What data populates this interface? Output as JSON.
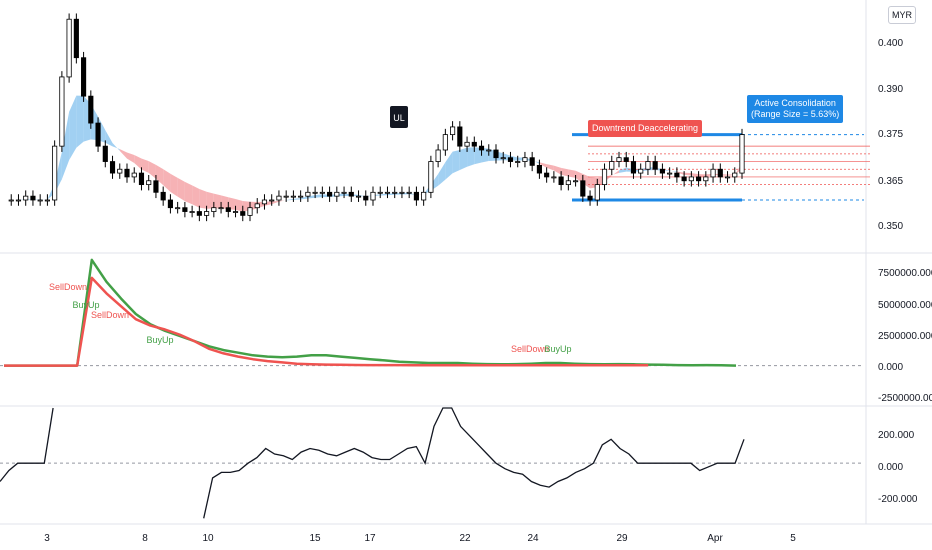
{
  "currency": "MYR",
  "colors": {
    "bull": "#ffffff",
    "bear": "#000000",
    "band_up": "#90c8f0",
    "band_down": "#f5a5a8",
    "green": "#43a047",
    "red": "#ef5350",
    "blue": "#1e88e5",
    "osc": "#131722"
  },
  "annotations": {
    "ul": "UL",
    "downtrend": "Downtrend Deaccelerating",
    "consolidation_title": "Active Consolidation",
    "consolidation_range": "(Range Size = 5.63%)"
  },
  "chart_data": [
    {
      "type": "candlestick",
      "x_ticks": [
        "3",
        "8",
        "10",
        "15",
        "17",
        "22",
        "24",
        "29",
        "Apr",
        "5"
      ],
      "y_ticks": [
        "0.400",
        "0.390",
        "0.375",
        "0.365",
        "0.350"
      ],
      "ylim": [
        0.345,
        0.41
      ],
      "closes": [
        0.358,
        0.358,
        0.358,
        0.359,
        0.358,
        0.358,
        0.358,
        0.372,
        0.39,
        0.405,
        0.395,
        0.385,
        0.378,
        0.372,
        0.368,
        0.365,
        0.366,
        0.364,
        0.365,
        0.362,
        0.363,
        0.36,
        0.358,
        0.356,
        0.356,
        0.355,
        0.355,
        0.354,
        0.355,
        0.356,
        0.356,
        0.355,
        0.355,
        0.354,
        0.356,
        0.357,
        0.358,
        0.358,
        0.359,
        0.359,
        0.359,
        0.359,
        0.36,
        0.36,
        0.36,
        0.359,
        0.36,
        0.36,
        0.359,
        0.359,
        0.358,
        0.36,
        0.36,
        0.36,
        0.36,
        0.36,
        0.36,
        0.358,
        0.36,
        0.368,
        0.371,
        0.375,
        0.377,
        0.372,
        0.373,
        0.372,
        0.371,
        0.371,
        0.369,
        0.369,
        0.368,
        0.368,
        0.369,
        0.367,
        0.365,
        0.364,
        0.364,
        0.362,
        0.363,
        0.363,
        0.359,
        0.358,
        0.362,
        0.366,
        0.368,
        0.369,
        0.368,
        0.365,
        0.366,
        0.368,
        0.366,
        0.365,
        0.365,
        0.364,
        0.363,
        0.364,
        0.363,
        0.364,
        0.366,
        0.364,
        0.364,
        0.365,
        0.375
      ],
      "resistance": 0.375,
      "support": 0.358,
      "annotations": [
        "UL",
        "Downtrend Deaccelerating",
        "Active Consolidation",
        "(Range Size = 5.63%)"
      ]
    },
    {
      "type": "line",
      "y_ticks": [
        "7500000.000",
        "5000000.000",
        "2500000.000",
        "0.000",
        "-2500000.000"
      ],
      "ylim": [
        -2900000,
        8500000
      ],
      "series": [
        {
          "color": "green",
          "values": [
            0,
            0,
            0,
            0,
            0,
            0,
            8200000,
            6500000,
            5200000,
            4000000,
            3200000,
            2700000,
            2300000,
            1900000,
            1500000,
            1200000,
            1000000,
            800000,
            700000,
            650000,
            700000,
            800000,
            800000,
            700000,
            600000,
            500000,
            400000,
            300000,
            250000,
            200000,
            200000,
            200000,
            150000,
            120000,
            100000,
            120000,
            150000,
            200000,
            200000,
            150000,
            120000,
            100000,
            120000,
            100000,
            80000,
            60000,
            40000,
            30000,
            40000,
            30000,
            0
          ]
        },
        {
          "color": "red",
          "values": [
            0,
            0,
            0,
            0,
            0,
            0,
            6800000,
            5600000,
            4600000,
            3600000,
            3100000,
            2800000,
            2400000,
            1900000,
            1300000,
            950000,
            700000,
            500000,
            350000,
            250000,
            150000,
            100000,
            80000,
            60000,
            50000,
            40000,
            40000,
            40000,
            30000,
            30000,
            30000,
            20000,
            20000,
            20000,
            20000,
            20000,
            20000,
            20000,
            20000,
            20000,
            20000,
            20000,
            20000,
            20000,
            20000,
            null,
            null,
            null,
            null,
            null,
            null
          ]
        }
      ],
      "signals": [
        "SellDown",
        "BuyUp",
        "SellDown",
        "BuyUp",
        "SellDown",
        "BuyUp"
      ]
    },
    {
      "type": "line",
      "y_ticks": [
        "200.000",
        "0.000",
        "-200.000"
      ],
      "ylim": [
        -320,
        300
      ],
      "series": [
        {
          "color": "black",
          "values": [
            -100,
            -40,
            0,
            0,
            0,
            0,
            600,
            null,
            null,
            -400,
            null,
            null,
            null,
            null,
            null,
            null,
            null,
            null,
            null,
            null,
            null,
            null,
            null,
            -300,
            -80,
            -50,
            -50,
            -40,
            0,
            30,
            80,
            50,
            40,
            20,
            60,
            80,
            70,
            50,
            40,
            60,
            80,
            60,
            30,
            20,
            20,
            50,
            80,
            90,
            0,
            200,
            300,
            330,
            200,
            150,
            100,
            50,
            0,
            -30,
            -50,
            -60,
            -100,
            -120,
            -130,
            -100,
            -80,
            -50,
            -30,
            0,
            100,
            130,
            80,
            50,
            0,
            0,
            0,
            0,
            0,
            0,
            0,
            -40,
            -20,
            0,
            0,
            0,
            130
          ]
        }
      ]
    }
  ]
}
